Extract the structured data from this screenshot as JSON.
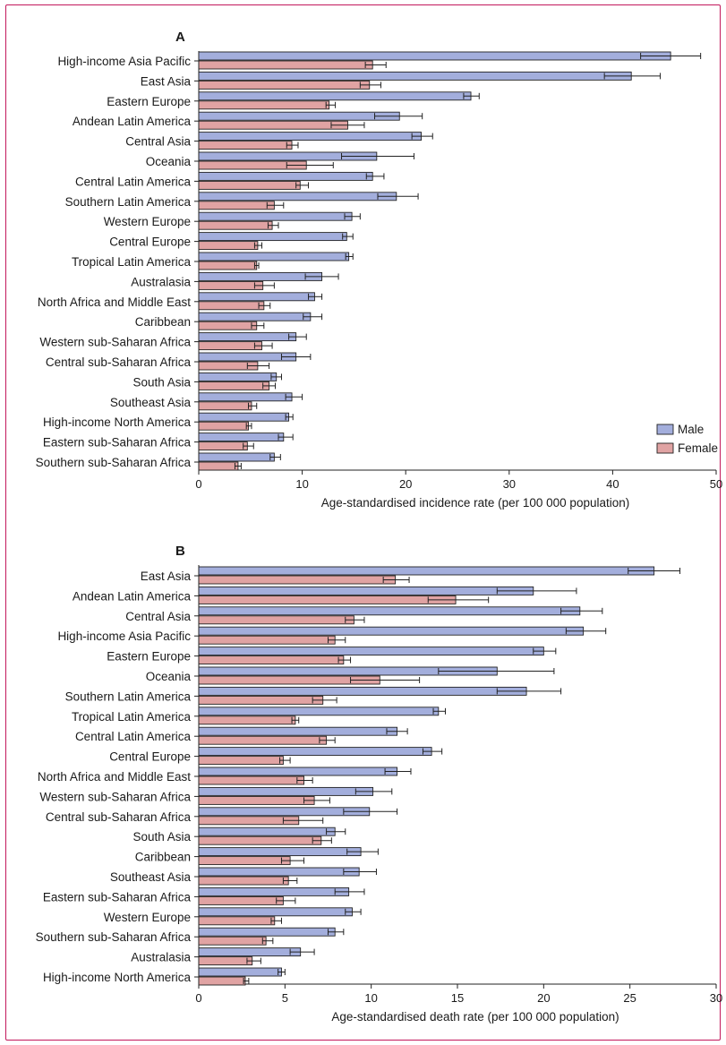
{
  "colors": {
    "male": "#a3aedc",
    "female": "#e0a3a3",
    "frame": "#c2185b",
    "stroke": "#222222"
  },
  "legend": {
    "male": "Male",
    "female": "Female"
  },
  "chart_data": [
    {
      "panel": "A",
      "type": "bar",
      "orientation": "horizontal",
      "xlabel": "Age-standardised incidence rate (per 100 000 population)",
      "xlim": [
        0,
        50
      ],
      "xticks": [
        0,
        10,
        20,
        30,
        40,
        50
      ],
      "legend_position": "bottom-right",
      "categories": [
        "High-income Asia Pacific",
        "East Asia",
        "Eastern Europe",
        "Andean Latin America",
        "Central Asia",
        "Oceania",
        "Central Latin America",
        "Southern Latin America",
        "Western Europe",
        "Central Europe",
        "Tropical Latin America",
        "Australasia",
        "North Africa and Middle East",
        "Caribbean",
        "Western sub-Saharan Africa",
        "Central sub-Saharan Africa",
        "South Asia",
        "Southeast Asia",
        "High-income North America",
        "Eastern sub-Saharan Africa",
        "Southern sub-Saharan Africa"
      ],
      "series": [
        {
          "name": "Male",
          "values": [
            45.6,
            41.8,
            26.3,
            19.4,
            21.5,
            17.2,
            16.8,
            19.1,
            14.8,
            14.3,
            14.5,
            11.9,
            11.2,
            10.8,
            9.4,
            9.4,
            7.5,
            9.0,
            8.7,
            8.2,
            7.3
          ],
          "lower": [
            42.7,
            39.2,
            25.6,
            17.0,
            20.6,
            13.8,
            16.2,
            17.3,
            14.1,
            13.9,
            14.2,
            10.3,
            10.6,
            10.1,
            8.7,
            8.0,
            7.0,
            8.4,
            8.4,
            7.7,
            6.9
          ],
          "upper": [
            48.5,
            44.6,
            27.1,
            21.6,
            22.6,
            20.8,
            17.9,
            21.2,
            15.6,
            14.9,
            14.9,
            13.5,
            11.9,
            11.9,
            10.4,
            10.8,
            8.0,
            10.0,
            9.1,
            9.1,
            7.9
          ]
        },
        {
          "name": "Female",
          "values": [
            16.8,
            16.5,
            12.6,
            14.4,
            9.0,
            10.4,
            9.8,
            7.3,
            7.1,
            5.7,
            5.6,
            6.2,
            6.3,
            5.6,
            6.1,
            5.7,
            6.8,
            5.1,
            4.8,
            4.7,
            3.8
          ],
          "lower": [
            16.1,
            15.6,
            12.3,
            12.8,
            8.5,
            8.5,
            9.4,
            6.6,
            6.7,
            5.4,
            5.4,
            5.4,
            5.8,
            5.1,
            5.4,
            4.7,
            6.2,
            4.8,
            4.6,
            4.3,
            3.5
          ],
          "upper": [
            18.1,
            17.6,
            13.2,
            16.0,
            9.6,
            13.0,
            10.6,
            8.2,
            7.7,
            6.1,
            5.8,
            7.3,
            6.9,
            6.3,
            7.1,
            6.8,
            7.4,
            5.6,
            5.1,
            5.3,
            4.1
          ]
        }
      ]
    },
    {
      "panel": "B",
      "type": "bar",
      "orientation": "horizontal",
      "xlabel": "Age-standardised death rate (per 100 000 population)",
      "xlim": [
        0,
        30
      ],
      "xticks": [
        0,
        5,
        10,
        15,
        20,
        25,
        30
      ],
      "categories": [
        "East Asia",
        "Andean Latin America",
        "Central Asia",
        "High-income Asia Pacific",
        "Eastern Europe",
        "Oceania",
        "Southern Latin America",
        "Tropical Latin America",
        "Central Latin America",
        "Central Europe",
        "North Africa and Middle East",
        "Western sub-Saharan Africa",
        "Central sub-Saharan Africa",
        "South Asia",
        "Caribbean",
        "Southeast Asia",
        "Eastern sub-Saharan Africa",
        "Western Europe",
        "Southern sub-Saharan Africa",
        "Australasia",
        "High-income North America"
      ],
      "series": [
        {
          "name": "Male",
          "values": [
            26.4,
            19.4,
            22.1,
            22.3,
            20.0,
            17.3,
            19.0,
            13.9,
            11.5,
            13.5,
            11.5,
            10.1,
            9.9,
            7.9,
            9.4,
            9.3,
            8.7,
            8.9,
            7.9,
            5.9,
            4.8
          ],
          "lower": [
            24.9,
            17.3,
            21.0,
            21.3,
            19.4,
            13.9,
            17.3,
            13.6,
            10.9,
            13.0,
            10.8,
            9.1,
            8.4,
            7.4,
            8.6,
            8.4,
            7.9,
            8.5,
            7.5,
            5.3,
            4.6
          ],
          "upper": [
            27.9,
            21.9,
            23.4,
            23.6,
            20.7,
            20.6,
            21.0,
            14.3,
            12.1,
            14.1,
            12.3,
            11.2,
            11.5,
            8.5,
            10.4,
            10.3,
            9.6,
            9.4,
            8.4,
            6.7,
            5.0
          ]
        },
        {
          "name": "Female",
          "values": [
            11.4,
            14.9,
            9.0,
            7.9,
            8.4,
            10.5,
            7.2,
            5.6,
            7.4,
            4.9,
            6.1,
            6.7,
            5.8,
            7.1,
            5.3,
            5.2,
            4.9,
            4.4,
            3.9,
            3.1,
            2.7
          ],
          "lower": [
            10.7,
            13.3,
            8.5,
            7.5,
            8.1,
            8.8,
            6.6,
            5.4,
            7.0,
            4.7,
            5.7,
            6.1,
            4.9,
            6.6,
            4.8,
            4.9,
            4.5,
            4.2,
            3.7,
            2.8,
            2.6
          ],
          "upper": [
            12.2,
            16.8,
            9.6,
            8.5,
            8.8,
            12.8,
            8.0,
            5.8,
            7.9,
            5.3,
            6.6,
            7.6,
            7.2,
            7.7,
            6.1,
            5.7,
            5.6,
            4.8,
            4.3,
            3.6,
            2.9
          ]
        }
      ]
    }
  ]
}
